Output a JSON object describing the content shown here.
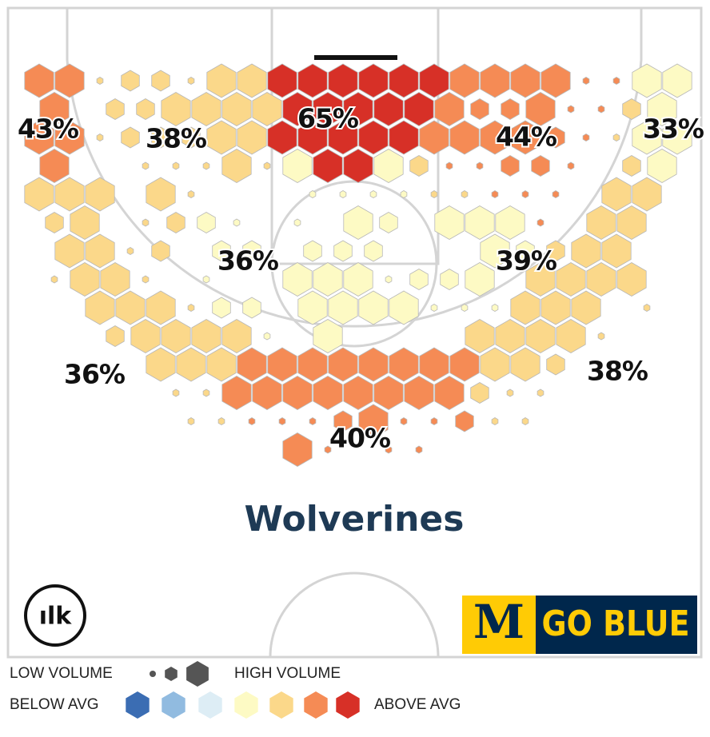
{
  "chart_data": {
    "type": "hexbin",
    "title": "Wolverines",
    "colors": [
      "#3b6db3",
      "#91bbe0",
      "#ddedf5",
      "#fdfac4",
      "#fbd88a",
      "#f58b55",
      "#d73027"
    ],
    "rows": [
      {
        "y": 0,
        "x": [
          2,
          4,
          6,
          8,
          10,
          12,
          14,
          16,
          18,
          20,
          22,
          24,
          26,
          28,
          30,
          32,
          34,
          36,
          38,
          40,
          42,
          44
        ],
        "volume": [
          3,
          3,
          1,
          2,
          2,
          1,
          3,
          3,
          3,
          3,
          3,
          3,
          3,
          3,
          3,
          3,
          3,
          3,
          1,
          1,
          3,
          3
        ],
        "level": [
          5,
          5,
          4,
          4,
          4,
          4,
          4,
          4,
          6,
          6,
          6,
          6,
          6,
          6,
          5,
          5,
          5,
          5,
          5,
          5,
          3,
          3
        ]
      },
      {
        "y": 1,
        "x": [
          3,
          7,
          9,
          11,
          13,
          15,
          17,
          19,
          21,
          23,
          25,
          27,
          29,
          31,
          33,
          35,
          37,
          39,
          41,
          43
        ],
        "volume": [
          3,
          2,
          2,
          3,
          3,
          3,
          3,
          3,
          3,
          3,
          3,
          3,
          3,
          2,
          2,
          3,
          1,
          1,
          2,
          3
        ],
        "level": [
          5,
          4,
          4,
          4,
          4,
          4,
          4,
          6,
          6,
          6,
          6,
          6,
          5,
          5,
          5,
          5,
          5,
          5,
          4,
          3
        ]
      },
      {
        "y": 2,
        "x": [
          2,
          4,
          6,
          8,
          10,
          12,
          14,
          16,
          18,
          20,
          22,
          24,
          26,
          28,
          30,
          32,
          34,
          36,
          38,
          40,
          42,
          44
        ],
        "volume": [
          3,
          3,
          1,
          2,
          2,
          2,
          3,
          3,
          3,
          3,
          3,
          3,
          3,
          3,
          3,
          3,
          3,
          2,
          1,
          1,
          3,
          3
        ],
        "level": [
          5,
          5,
          4,
          4,
          4,
          4,
          4,
          4,
          6,
          6,
          6,
          6,
          6,
          5,
          5,
          5,
          5,
          5,
          5,
          4,
          3,
          3
        ]
      },
      {
        "y": 3,
        "x": [
          3,
          9,
          11,
          13,
          15,
          17,
          19,
          21,
          23,
          25,
          27,
          29,
          31,
          33,
          35,
          37,
          41,
          43
        ],
        "volume": [
          3,
          1,
          1,
          1,
          3,
          1,
          3,
          3,
          3,
          3,
          2,
          1,
          1,
          2,
          2,
          1,
          2,
          3
        ],
        "level": [
          5,
          4,
          4,
          4,
          4,
          4,
          3,
          6,
          6,
          3,
          4,
          5,
          5,
          5,
          5,
          5,
          4,
          3
        ]
      },
      {
        "y": 4,
        "x": [
          2,
          4,
          6,
          10,
          12,
          20,
          22,
          24,
          26,
          28,
          30,
          32,
          34,
          36,
          40,
          42
        ],
        "volume": [
          3,
          3,
          3,
          3,
          1,
          1,
          1,
          1,
          1,
          1,
          1,
          1,
          1,
          1,
          3,
          3
        ],
        "level": [
          4,
          4,
          4,
          4,
          4,
          3,
          3,
          3,
          3,
          4,
          4,
          5,
          5,
          5,
          4,
          4
        ]
      },
      {
        "y": 5,
        "x": [
          3,
          5,
          9,
          11,
          13,
          15,
          19,
          23,
          25,
          29,
          31,
          33,
          35,
          39,
          41
        ],
        "volume": [
          2,
          3,
          1,
          2,
          2,
          1,
          1,
          3,
          2,
          3,
          3,
          3,
          1,
          3,
          3
        ],
        "level": [
          4,
          4,
          4,
          4,
          3,
          3,
          3,
          3,
          3,
          3,
          3,
          3,
          5,
          4,
          4
        ]
      },
      {
        "y": 6,
        "x": [
          4,
          6,
          8,
          10,
          14,
          16,
          20,
          22,
          24,
          32,
          34,
          36,
          38,
          40
        ],
        "volume": [
          3,
          3,
          1,
          2,
          2,
          2,
          2,
          2,
          2,
          3,
          2,
          2,
          3,
          3
        ],
        "level": [
          4,
          4,
          4,
          4,
          3,
          3,
          3,
          3,
          3,
          3,
          3,
          4,
          4,
          4
        ]
      },
      {
        "y": 7,
        "x": [
          3,
          5,
          7,
          9,
          13,
          19,
          21,
          23,
          25,
          27,
          29,
          31,
          35,
          37,
          39,
          41
        ],
        "volume": [
          1,
          3,
          3,
          1,
          1,
          3,
          3,
          3,
          1,
          2,
          2,
          3,
          3,
          3,
          3,
          3
        ],
        "level": [
          4,
          4,
          4,
          4,
          3,
          3,
          3,
          3,
          3,
          3,
          3,
          3,
          4,
          4,
          4,
          4
        ]
      },
      {
        "y": 8,
        "x": [
          6,
          8,
          10,
          12,
          14,
          16,
          20,
          22,
          24,
          26,
          28,
          30,
          32,
          34,
          36,
          38,
          42
        ],
        "volume": [
          3,
          3,
          3,
          1,
          2,
          2,
          3,
          3,
          3,
          3,
          1,
          1,
          1,
          3,
          3,
          3,
          1
        ],
        "level": [
          4,
          4,
          4,
          4,
          3,
          3,
          3,
          3,
          3,
          3,
          3,
          3,
          3,
          4,
          4,
          4,
          4
        ]
      },
      {
        "y": 9,
        "x": [
          7,
          9,
          11,
          13,
          15,
          17,
          21,
          31,
          33,
          35,
          37,
          39
        ],
        "volume": [
          2,
          3,
          3,
          3,
          3,
          1,
          3,
          3,
          3,
          3,
          3,
          1
        ],
        "level": [
          4,
          4,
          4,
          4,
          4,
          3,
          3,
          4,
          4,
          4,
          4,
          4
        ]
      },
      {
        "y": 10,
        "x": [
          10,
          12,
          14,
          16,
          18,
          20,
          22,
          24,
          26,
          28,
          30,
          32,
          34,
          36
        ],
        "volume": [
          3,
          3,
          3,
          3,
          3,
          3,
          3,
          3,
          3,
          3,
          3,
          3,
          3,
          2
        ],
        "level": [
          4,
          4,
          4,
          5,
          5,
          5,
          5,
          5,
          5,
          5,
          5,
          4,
          4,
          4
        ]
      },
      {
        "y": 11,
        "x": [
          11,
          13,
          15,
          17,
          19,
          21,
          23,
          25,
          27,
          29,
          31,
          33,
          35
        ],
        "volume": [
          1,
          1,
          3,
          3,
          3,
          3,
          3,
          3,
          3,
          3,
          2,
          1,
          1
        ],
        "level": [
          4,
          4,
          5,
          5,
          5,
          5,
          5,
          5,
          5,
          5,
          4,
          4,
          4
        ]
      },
      {
        "y": 12,
        "x": [
          12,
          14,
          16,
          18,
          20,
          22,
          24,
          26,
          28,
          30,
          32,
          34
        ],
        "volume": [
          1,
          1,
          1,
          1,
          1,
          2,
          3,
          1,
          1,
          2,
          1,
          1
        ],
        "level": [
          4,
          4,
          5,
          5,
          5,
          5,
          5,
          5,
          5,
          5,
          4,
          4
        ]
      },
      {
        "y": 13,
        "x": [
          19,
          21,
          25,
          27
        ],
        "volume": [
          3,
          1,
          1,
          1
        ],
        "level": [
          5,
          5,
          5,
          5
        ]
      }
    ],
    "zone_values": [
      43,
      38,
      65,
      44,
      33,
      36,
      39,
      36,
      38,
      40
    ],
    "zone_labels": [
      "43%",
      "38%",
      "65%",
      "44%",
      "33%",
      "36%",
      "39%",
      "36%",
      "38%",
      "40%"
    ],
    "legend": {
      "low_volume": "LOW VOLUME",
      "high_volume": "HIGH VOLUME",
      "below_avg": "BELOW AVG",
      "above_avg": "ABOVE AVG"
    },
    "logo_text": "ılk",
    "banner": {
      "letter": "M",
      "text": "GO BLUE"
    }
  }
}
